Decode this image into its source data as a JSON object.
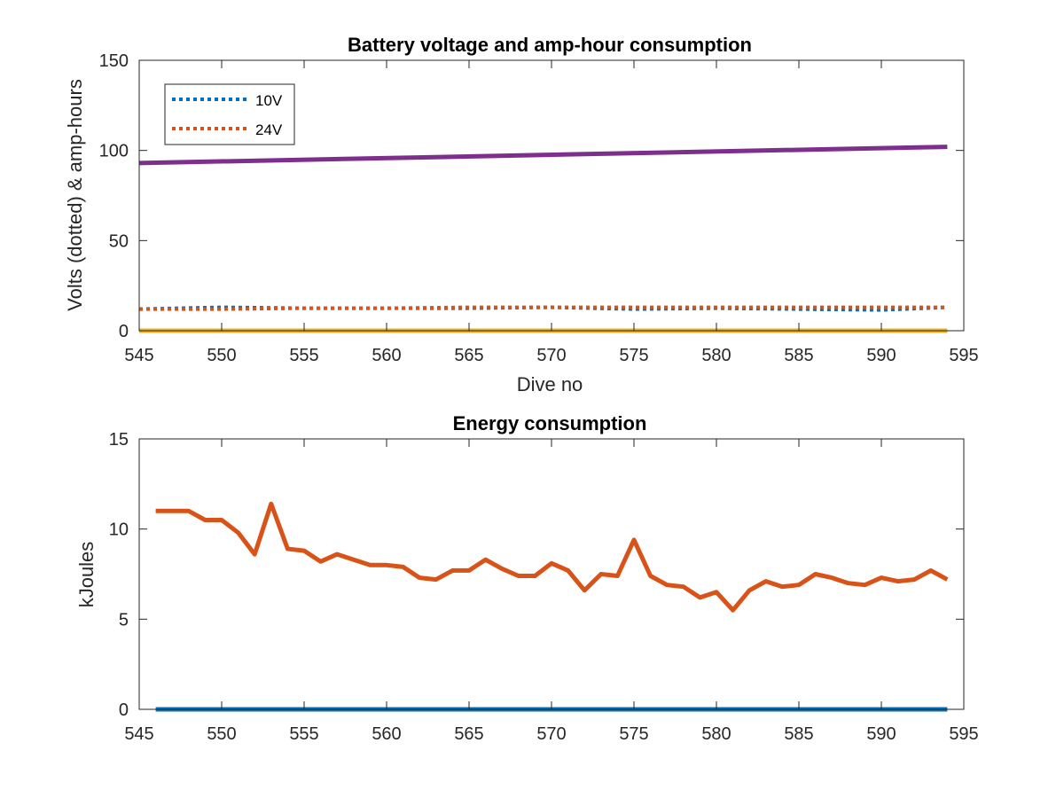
{
  "chart_data": [
    {
      "type": "line",
      "title": "Battery voltage and amp-hour consumption",
      "xlabel": "Dive no",
      "ylabel": "Volts (dotted) & amp-hours",
      "xlim": [
        545,
        595
      ],
      "ylim": [
        0,
        150
      ],
      "xticks": [
        "545",
        "550",
        "555",
        "560",
        "565",
        "570",
        "575",
        "580",
        "585",
        "590",
        "595"
      ],
      "yticks": [
        "0",
        "50",
        "100",
        "150"
      ],
      "legend": {
        "placement": "top-left",
        "entries": [
          "10V",
          "24V"
        ]
      },
      "series": [
        {
          "name": "10V",
          "color": "#0072BD",
          "style": "dotted",
          "x": [
            545,
            550,
            555,
            560,
            565,
            570,
            575,
            580,
            585,
            590,
            594
          ],
          "y": [
            12,
            13,
            12.5,
            12.5,
            12.5,
            13,
            12,
            12.5,
            12,
            11.5,
            13
          ]
        },
        {
          "name": "24V",
          "color": "#D95319",
          "style": "dotted",
          "x": [
            545,
            550,
            555,
            560,
            565,
            570,
            575,
            580,
            585,
            590,
            594
          ],
          "y": [
            12,
            12,
            12.5,
            12.5,
            13,
            13,
            13,
            13,
            13,
            13,
            13
          ]
        },
        {
          "color": "#EDB120",
          "style": "solid",
          "x": [
            545,
            594
          ],
          "y": [
            0,
            0
          ]
        },
        {
          "color": "#7E2F8E",
          "style": "solid",
          "x": [
            545,
            594
          ],
          "y": [
            93,
            102
          ]
        }
      ]
    },
    {
      "type": "line",
      "title": "Energy consumption",
      "xlabel": "",
      "ylabel": "kJoules",
      "xlim": [
        545,
        595
      ],
      "ylim": [
        0,
        15
      ],
      "xticks": [
        "545",
        "550",
        "555",
        "560",
        "565",
        "570",
        "575",
        "580",
        "585",
        "590",
        "595"
      ],
      "yticks": [
        "0",
        "5",
        "10",
        "15"
      ],
      "series": [
        {
          "color": "#0072BD",
          "style": "solid",
          "x": [
            546,
            594
          ],
          "y": [
            0,
            0
          ]
        },
        {
          "color": "#D95319",
          "style": "solid",
          "x": [
            546,
            547,
            548,
            549,
            550,
            551,
            552,
            553,
            554,
            555,
            556,
            557,
            558,
            559,
            560,
            561,
            562,
            563,
            564,
            565,
            566,
            567,
            568,
            569,
            570,
            571,
            572,
            573,
            574,
            575,
            576,
            577,
            578,
            579,
            580,
            581,
            582,
            583,
            584,
            585,
            586,
            587,
            588,
            589,
            590,
            591,
            592,
            593,
            594
          ],
          "y": [
            11,
            11,
            11,
            10.5,
            10.5,
            9.8,
            8.6,
            11.4,
            8.9,
            8.8,
            8.2,
            8.6,
            8.3,
            8.0,
            8.0,
            7.9,
            7.3,
            7.2,
            7.7,
            7.7,
            8.3,
            7.8,
            7.4,
            7.4,
            8.1,
            7.7,
            6.6,
            7.5,
            7.4,
            9.4,
            7.4,
            6.9,
            6.8,
            6.2,
            6.5,
            5.5,
            6.6,
            7.1,
            6.8,
            6.9,
            7.5,
            7.3,
            7.0,
            6.9,
            7.3,
            7.1,
            7.2,
            7.7,
            7.2
          ]
        }
      ]
    }
  ]
}
